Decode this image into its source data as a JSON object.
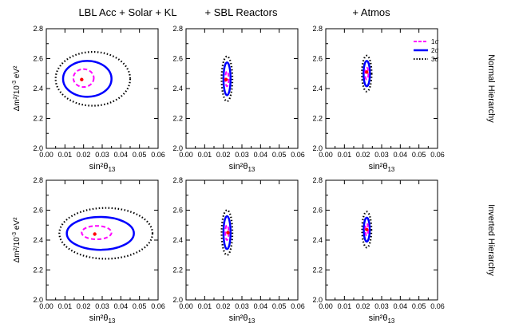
{
  "chart_data": {
    "type": "contour",
    "columns": [
      "LBL Acc + Solar + KL",
      "+ SBL Reactors",
      "+ Atmos"
    ],
    "rows": [
      "Normal Hierarchy",
      "Inverted Hierarchy"
    ],
    "xlabel": "sin²θ",
    "xlabel_sub": "13",
    "ylabel_base": "Δm²/10",
    "ylabel_exp": "-3",
    "ylabel_unit": "eV²",
    "xlim": [
      0.0,
      0.06
    ],
    "ylim": [
      2.0,
      2.8
    ],
    "xticks": [
      "0.00",
      "0.01",
      "0.02",
      "0.03",
      "0.04",
      "0.05",
      "0.06"
    ],
    "yticks": [
      "2.0",
      "2.2",
      "2.4",
      "2.6",
      "2.8"
    ],
    "legend": [
      {
        "label": "1σ",
        "color": "#ff00ff",
        "style": "dashed"
      },
      {
        "label": "2σ",
        "color": "#0000ff",
        "style": "solid"
      },
      {
        "label": "3σ",
        "color": "#000000",
        "style": "dotted"
      }
    ],
    "panels": [
      {
        "row": 0,
        "col": 0,
        "best_fit": [
          0.019,
          2.46
        ],
        "contours": {
          "1sigma": {
            "center": [
              0.02,
              2.47
            ],
            "sx": 0.0055,
            "sy": 0.06
          },
          "2sigma": {
            "center": [
              0.022,
              2.465
            ],
            "sx": 0.013,
            "sy": 0.12
          },
          "3sigma": {
            "center": [
              0.025,
              2.465
            ],
            "sx": 0.02,
            "sy": 0.18
          }
        }
      },
      {
        "row": 0,
        "col": 1,
        "best_fit": [
          0.0215,
          2.46
        ],
        "contours": {
          "1sigma": {
            "center": [
              0.022,
              2.465
            ],
            "sx": 0.0009,
            "sy": 0.05
          },
          "2sigma": {
            "center": [
              0.022,
              2.465
            ],
            "sx": 0.0019,
            "sy": 0.11
          },
          "3sigma": {
            "center": [
              0.022,
              2.465
            ],
            "sx": 0.0029,
            "sy": 0.15
          }
        }
      },
      {
        "row": 0,
        "col": 2,
        "best_fit": [
          0.022,
          2.51
        ],
        "contours": {
          "1sigma": {
            "center": [
              0.022,
              2.5
            ],
            "sx": 0.0009,
            "sy": 0.04
          },
          "2sigma": {
            "center": [
              0.022,
              2.5
            ],
            "sx": 0.0017,
            "sy": 0.085
          },
          "3sigma": {
            "center": [
              0.022,
              2.5
            ],
            "sx": 0.0026,
            "sy": 0.12
          }
        }
      },
      {
        "row": 1,
        "col": 0,
        "best_fit": [
          0.026,
          2.44
        ],
        "contours": {
          "1sigma": {
            "center": [
              0.027,
              2.45
            ],
            "sx": 0.008,
            "sy": 0.045
          },
          "2sigma": {
            "center": [
              0.029,
              2.445
            ],
            "sx": 0.018,
            "sy": 0.11
          },
          "3sigma": {
            "center": [
              0.032,
              2.445
            ],
            "sx": 0.025,
            "sy": 0.17
          }
        }
      },
      {
        "row": 1,
        "col": 1,
        "best_fit": [
          0.0225,
          2.45
        ],
        "contours": {
          "1sigma": {
            "center": [
              0.022,
              2.45
            ],
            "sx": 0.0009,
            "sy": 0.05
          },
          "2sigma": {
            "center": [
              0.022,
              2.45
            ],
            "sx": 0.0019,
            "sy": 0.11
          },
          "3sigma": {
            "center": [
              0.022,
              2.45
            ],
            "sx": 0.0029,
            "sy": 0.15
          }
        }
      },
      {
        "row": 1,
        "col": 2,
        "best_fit": [
          0.022,
          2.47
        ],
        "contours": {
          "1sigma": {
            "center": [
              0.022,
              2.47
            ],
            "sx": 0.0008,
            "sy": 0.04
          },
          "2sigma": {
            "center": [
              0.022,
              2.47
            ],
            "sx": 0.0016,
            "sy": 0.08
          },
          "3sigma": {
            "center": [
              0.022,
              2.47
            ],
            "sx": 0.0025,
            "sy": 0.12
          }
        }
      }
    ]
  }
}
